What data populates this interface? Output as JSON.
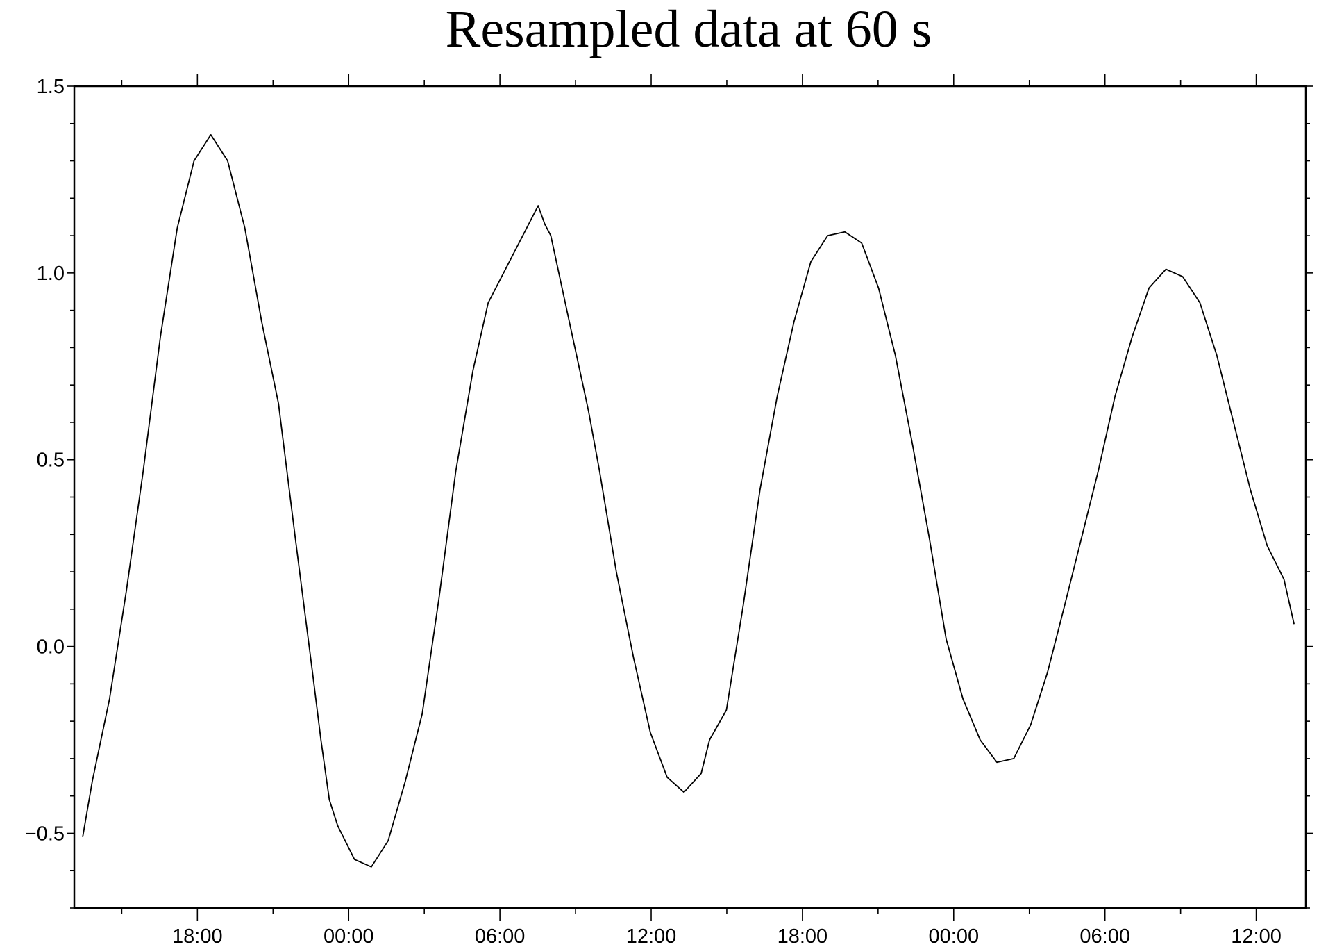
{
  "chart_data": {
    "type": "line",
    "title": "Resampled data at 60 s",
    "xlabel": "",
    "ylabel": "",
    "xlim": [
      "D0 13:07",
      "D2 13:58"
    ],
    "ylim": [
      -0.7,
      1.5
    ],
    "grid": false,
    "line_color": "#000000",
    "yticks": [
      {
        "value": 1.5,
        "label": "1.5"
      },
      {
        "value": 1.0,
        "label": "1.0"
      },
      {
        "value": 0.5,
        "label": "0.5"
      },
      {
        "value": 0.0,
        "label": "0.0"
      },
      {
        "value": -0.5,
        "label": "−0.5"
      }
    ],
    "xticks": [
      {
        "value": "D0 18:00",
        "label": "18:00"
      },
      {
        "value": "D1 00:00",
        "label": "00:00"
      },
      {
        "value": "D1 06:00",
        "label": "06:00"
      },
      {
        "value": "D1 12:00",
        "label": "12:00"
      },
      {
        "value": "D1 18:00",
        "label": "18:00"
      },
      {
        "value": "D2 00:00",
        "label": "00:00"
      },
      {
        "value": "D2 06:00",
        "label": "06:00"
      },
      {
        "value": "D2 12:00",
        "label": "12:00"
      }
    ],
    "series": [
      {
        "points": [
          [
            "D0 13:27",
            -0.51
          ],
          [
            "D0 13:50",
            -0.36
          ],
          [
            "D0 14:31",
            -0.14
          ],
          [
            "D0 15:11",
            0.15
          ],
          [
            "D0 15:51",
            0.47
          ],
          [
            "D0 16:32",
            0.83
          ],
          [
            "D0 17:12",
            1.12
          ],
          [
            "D0 17:52",
            1.3
          ],
          [
            "D0 18:32",
            1.37
          ],
          [
            "D0 19:12",
            1.3
          ],
          [
            "D0 19:53",
            1.12
          ],
          [
            "D0 20:33",
            0.87
          ],
          [
            "D0 21:13",
            0.65
          ],
          [
            "D0 21:53",
            0.29
          ],
          [
            "D0 22:34",
            -0.07
          ],
          [
            "D0 22:54",
            -0.25
          ],
          [
            "D0 23:14",
            -0.41
          ],
          [
            "D0 23:34",
            -0.48
          ],
          [
            "D1 00:14",
            -0.57
          ],
          [
            "D1 00:54",
            -0.59
          ],
          [
            "D1 01:34",
            -0.52
          ],
          [
            "D1 02:15",
            -0.36
          ],
          [
            "D1 02:55",
            -0.18
          ],
          [
            "D1 03:35",
            0.13
          ],
          [
            "D1 04:15",
            0.47
          ],
          [
            "D1 04:56",
            0.74
          ],
          [
            "D1 05:32",
            0.92
          ],
          [
            "D1 07:31",
            1.18
          ],
          [
            "D1 07:47",
            1.13
          ],
          [
            "D1 08:01",
            1.1
          ],
          [
            "D1 09:31",
            0.63
          ],
          [
            "D1 09:57",
            0.47
          ],
          [
            "D1 10:37",
            0.2
          ],
          [
            "D1 11:18",
            -0.03
          ],
          [
            "D1 11:58",
            -0.23
          ],
          [
            "D1 12:38",
            -0.35
          ],
          [
            "D1 13:18",
            -0.39
          ],
          [
            "D1 13:59",
            -0.34
          ],
          [
            "D1 14:19",
            -0.25
          ],
          [
            "D1 14:59",
            -0.17
          ],
          [
            "D1 15:39",
            0.11
          ],
          [
            "D1 16:19",
            0.42
          ],
          [
            "D1 17:00",
            0.67
          ],
          [
            "D1 17:40",
            0.87
          ],
          [
            "D1 18:20",
            1.03
          ],
          [
            "D1 19:00",
            1.1
          ],
          [
            "D1 19:41",
            1.11
          ],
          [
            "D1 20:21",
            1.08
          ],
          [
            "D1 21:01",
            0.96
          ],
          [
            "D1 21:41",
            0.78
          ],
          [
            "D1 22:22",
            0.54
          ],
          [
            "D1 23:02",
            0.29
          ],
          [
            "D1 23:42",
            0.02
          ],
          [
            "D2 00:22",
            -0.14
          ],
          [
            "D2 01:03",
            -0.25
          ],
          [
            "D2 01:43",
            -0.31
          ],
          [
            "D2 02:23",
            -0.3
          ],
          [
            "D2 03:03",
            -0.21
          ],
          [
            "D2 03:43",
            -0.07
          ],
          [
            "D2 04:24",
            0.11
          ],
          [
            "D2 05:04",
            0.29
          ],
          [
            "D2 05:44",
            0.47
          ],
          [
            "D2 06:24",
            0.67
          ],
          [
            "D2 07:05",
            0.83
          ],
          [
            "D2 07:45",
            0.96
          ],
          [
            "D2 08:25",
            1.01
          ],
          [
            "D2 09:05",
            0.99
          ],
          [
            "D2 09:46",
            0.92
          ],
          [
            "D2 10:26",
            0.78
          ],
          [
            "D2 11:06",
            0.6
          ],
          [
            "D2 11:46",
            0.42
          ],
          [
            "D2 12:26",
            0.27
          ],
          [
            "D2 13:06",
            0.18
          ],
          [
            "D2 13:30",
            0.06
          ]
        ]
      }
    ]
  }
}
